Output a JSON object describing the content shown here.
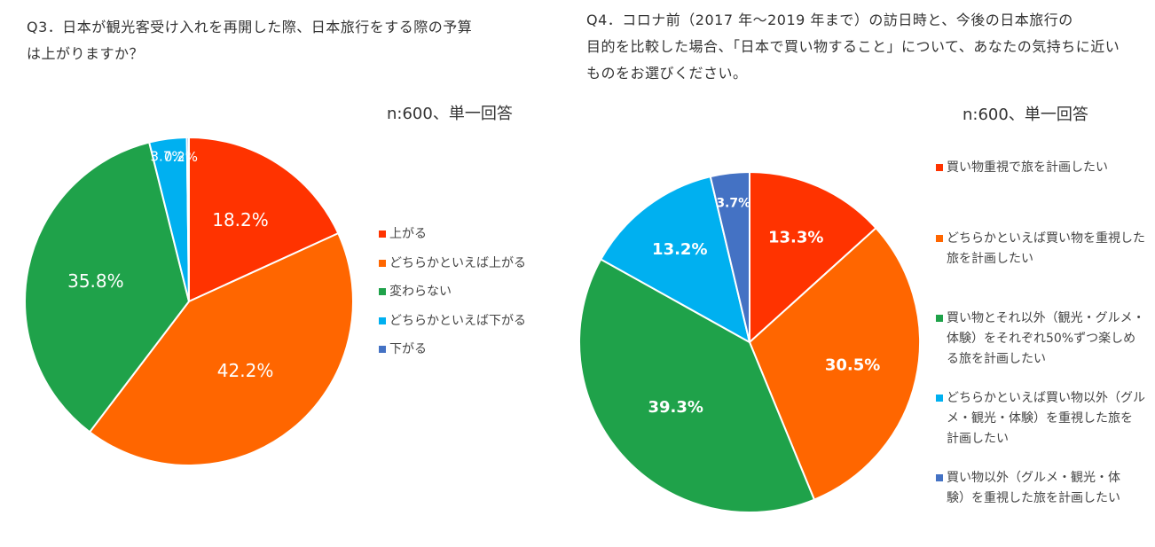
{
  "colors": {
    "red": "#FF3300",
    "orange": "#FF6600",
    "green": "#1FA24A",
    "sky": "#00B0F0",
    "blue": "#4472C4"
  },
  "q3": {
    "title_lines": [
      "Q3．日本が観光客受け入れを再開した際、日本旅行をする際の予算",
      "は上がりますか？"
    ],
    "n_label": "n:600、単一回答"
  },
  "q4": {
    "title_lines": [
      "Q4．コロナ前（2017 年～2019 年まで）の訪日時と、今後の日本旅行の",
      "目的を比較した場合、「日本で買い物すること」について、あなたの気持ちに近い",
      "ものをお選びください。"
    ],
    "n_label": "n:600、単一回答"
  },
  "chart_data": [
    {
      "type": "pie",
      "title": "Q3．日本が観光客受け入れを再開した際、日本旅行をする際の予算は上がりますか？",
      "note": "n:600、単一回答",
      "legend_position": "right",
      "slices": [
        {
          "label": "上がる",
          "value": 18.2,
          "display": "18.2%",
          "color": "#FF3300"
        },
        {
          "label": "どちらかといえば上がる",
          "value": 42.2,
          "display": "42.2%",
          "color": "#FF6600"
        },
        {
          "label": "変わらない",
          "value": 35.8,
          "display": "35.8%",
          "color": "#1FA24A"
        },
        {
          "label": "どちらかといえば下がる",
          "value": 3.7,
          "display": "3.7%",
          "color": "#00B0F0"
        },
        {
          "label": "下がる",
          "value": 0.2,
          "display": "0.2%",
          "color": "#4472C4"
        }
      ]
    },
    {
      "type": "pie",
      "title": "Q4．コロナ前（2017 年～2019 年まで）の訪日時と、今後の日本旅行の目的を比較した場合、「日本で買い物すること」について、あなたの気持ちに近いものをお選びください。",
      "note": "n:600、単一回答",
      "legend_position": "right",
      "slices": [
        {
          "label": "買い物重視で旅を計画したい",
          "value": 13.3,
          "display": "13.3%",
          "color": "#FF3300"
        },
        {
          "label": "どちらかといえば買い物を重視した\n旅を計画したい",
          "value": 30.5,
          "display": "30.5%",
          "color": "#FF6600"
        },
        {
          "label": "買い物とそれ以外（観光・グルメ・\n体験）をそれぞれ50%ずつ楽しめ\nる旅を計画したい",
          "value": 39.3,
          "display": "39.3%",
          "color": "#1FA24A"
        },
        {
          "label": "どちらかといえば買い物以外（グル\nメ・観光・体験）を重視した旅を\n計画したい",
          "value": 13.2,
          "display": "13.2%",
          "color": "#00B0F0"
        },
        {
          "label": "買い物以外（グルメ・観光・体\n験）を重視した旅を計画したい",
          "value": 3.7,
          "display": "3.7%",
          "color": "#4472C4"
        }
      ]
    }
  ]
}
